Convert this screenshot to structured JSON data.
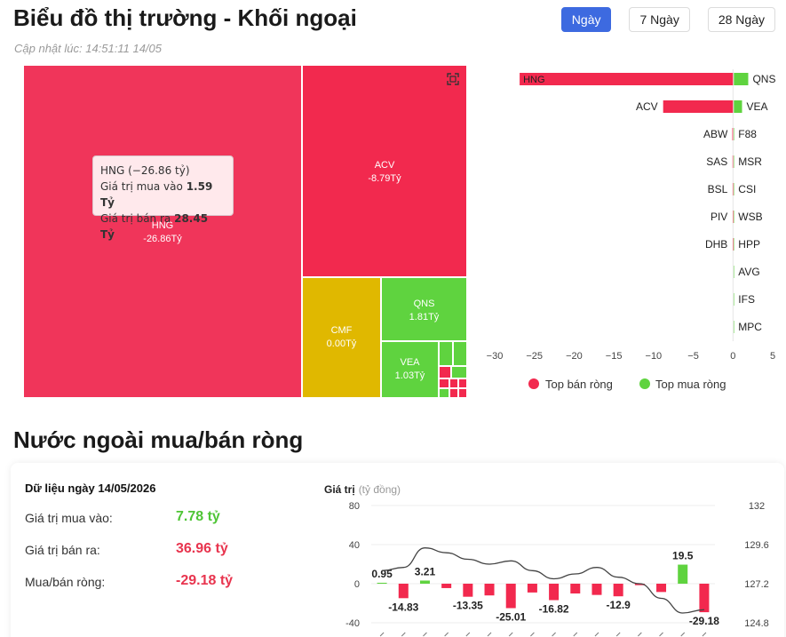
{
  "header": {
    "title": "Biểu đồ thị trường - Khối ngoại",
    "updated": "Cập nhật lúc: 14:51:11 14/05",
    "tabs": [
      {
        "label": "Ngày",
        "active": true
      },
      {
        "label": "7 Ngày",
        "active": false
      },
      {
        "label": "28 Ngày",
        "active": false
      }
    ]
  },
  "colors": {
    "sell": "#f2294e",
    "buy": "#5fd33f",
    "neutral": "#e0b800",
    "accent": "#3d6ae0"
  },
  "treemap": {
    "cells": [
      {
        "name": "HNG",
        "label": "HNG",
        "value": "-26.86Tỷ"
      },
      {
        "name": "ACV",
        "label": "ACV",
        "value": "-8.79Tỷ"
      },
      {
        "name": "CMF",
        "label": "CMF",
        "value": "0.00Tỷ"
      },
      {
        "name": "QNS",
        "label": "QNS",
        "value": "1.81Tỷ"
      },
      {
        "name": "VEA",
        "label": "VEA",
        "value": "1.03Tỷ"
      }
    ],
    "tooltip": {
      "title": "HNG (−26.86 tỷ)",
      "buy_label": "Giá trị mua vào",
      "buy_value": "1.59 Tỷ",
      "sell_label": "Giá trị bán ra",
      "sell_value": "28.45 Tỷ"
    },
    "icon": "fullscreen-icon"
  },
  "chart_data": [
    {
      "type": "bar",
      "orientation": "horizontal",
      "xlim": [
        -30,
        5
      ],
      "ticks": [
        -30,
        -25,
        -20,
        -15,
        -10,
        -5,
        0,
        5
      ],
      "legend": [
        "Top bán ròng",
        "Top mua ròng"
      ],
      "legend_position": "bottom",
      "rows": [
        {
          "sell": "HNG",
          "sell_value": -26.86,
          "buy": "QNS",
          "buy_value": 1.81
        },
        {
          "sell": "ACV",
          "sell_value": -8.79,
          "buy": "VEA",
          "buy_value": 1.03
        },
        {
          "sell": "ABW",
          "sell_value": -0.08,
          "buy": "F88",
          "buy_value": 0.06
        },
        {
          "sell": "SAS",
          "sell_value": -0.05,
          "buy": "MSR",
          "buy_value": 0.04
        },
        {
          "sell": "BSL",
          "sell_value": -0.04,
          "buy": "CSI",
          "buy_value": 0.03
        },
        {
          "sell": "PIV",
          "sell_value": -0.03,
          "buy": "WSB",
          "buy_value": 0.02
        },
        {
          "sell": "DHB",
          "sell_value": -0.02,
          "buy": "HPP",
          "buy_value": 0.02
        },
        {
          "sell": "",
          "sell_value": 0,
          "buy": "AVG",
          "buy_value": 0.01
        },
        {
          "sell": "",
          "sell_value": 0,
          "buy": "IFS",
          "buy_value": 0.01
        },
        {
          "sell": "",
          "sell_value": 0,
          "buy": "MPC",
          "buy_value": 0.01
        }
      ]
    },
    {
      "type": "bar+line",
      "ylabel": "Giá trị",
      "yunit": "(tỷ đồng)",
      "ylim": [
        -40,
        80
      ],
      "yticks": [
        80,
        40,
        0,
        -40
      ],
      "y2lim": [
        124.8,
        132
      ],
      "y2ticks": [
        "132",
        "129.6",
        "127.2",
        "124.8"
      ],
      "bars": [
        0.95,
        -14.83,
        3.21,
        -4.5,
        -13.35,
        -12.0,
        -25.01,
        -9.0,
        -16.82,
        -10.0,
        -11.5,
        -12.9,
        -1.5,
        -8.5,
        19.5,
        -29.18
      ],
      "bar_labels": [
        "0.95",
        "-14.83",
        "3.21",
        "",
        "-13.35",
        "",
        "-25.01",
        "",
        "-16.82",
        "",
        "",
        "-12.9",
        "",
        "",
        "19.5",
        "-29.18"
      ],
      "line": [
        128.0,
        128.2,
        129.4,
        129.1,
        128.7,
        128.4,
        128.6,
        128.0,
        127.5,
        127.8,
        128.2,
        127.6,
        127.2,
        126.3,
        125.4,
        125.6
      ]
    }
  ],
  "summary": {
    "title": "Dữ liệu ngày 14/05/2026",
    "rows": [
      {
        "label": "Giá trị mua vào:",
        "value": "7.78 tỷ",
        "tone": "green"
      },
      {
        "label": "Giá trị bán ra:",
        "value": "36.96 tỷ",
        "tone": "red"
      },
      {
        "label": "Mua/bán ròng:",
        "value": "-29.18 tỷ",
        "tone": "red"
      }
    ]
  },
  "section": {
    "title": "Nước ngoài mua/bán ròng"
  }
}
